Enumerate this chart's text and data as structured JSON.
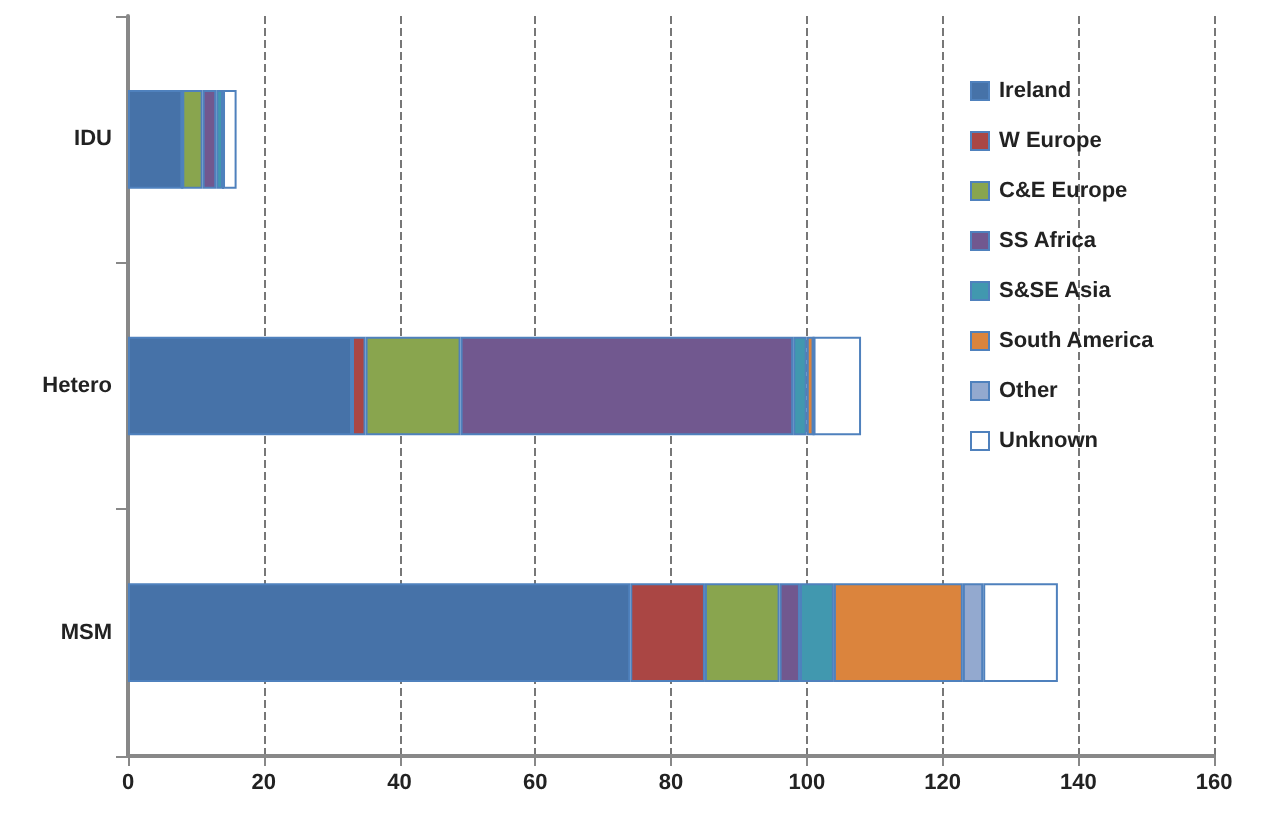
{
  "chart_data": {
    "type": "bar",
    "orientation": "horizontal",
    "stacked": true,
    "categories": [
      "IDU",
      "Hetero",
      "MSM"
    ],
    "series": [
      {
        "name": "Ireland",
        "color": "#4672a8",
        "values": [
          8,
          33,
          74
        ]
      },
      {
        "name": "W Europe",
        "color": "#aa4644",
        "values": [
          0,
          2,
          11
        ]
      },
      {
        "name": "C&E Europe",
        "color": "#89a54e",
        "values": [
          3,
          14,
          11
        ]
      },
      {
        "name": "SS Africa",
        "color": "#71588f",
        "values": [
          2,
          49,
          3
        ]
      },
      {
        "name": "S&SE Asia",
        "color": "#4198af",
        "values": [
          1,
          2,
          5
        ]
      },
      {
        "name": "South America",
        "color": "#db843d",
        "values": [
          0,
          1,
          19
        ]
      },
      {
        "name": "Other",
        "color": "#93a9cf",
        "values": [
          0,
          0,
          3
        ]
      },
      {
        "name": "Unknown",
        "color": "#ffffff",
        "values": [
          2,
          7,
          11
        ]
      }
    ],
    "xlim": [
      0,
      160
    ],
    "xticks": [
      0,
      20,
      40,
      60,
      80,
      100,
      120,
      140,
      160
    ],
    "grid": "x",
    "legend": "top right"
  }
}
